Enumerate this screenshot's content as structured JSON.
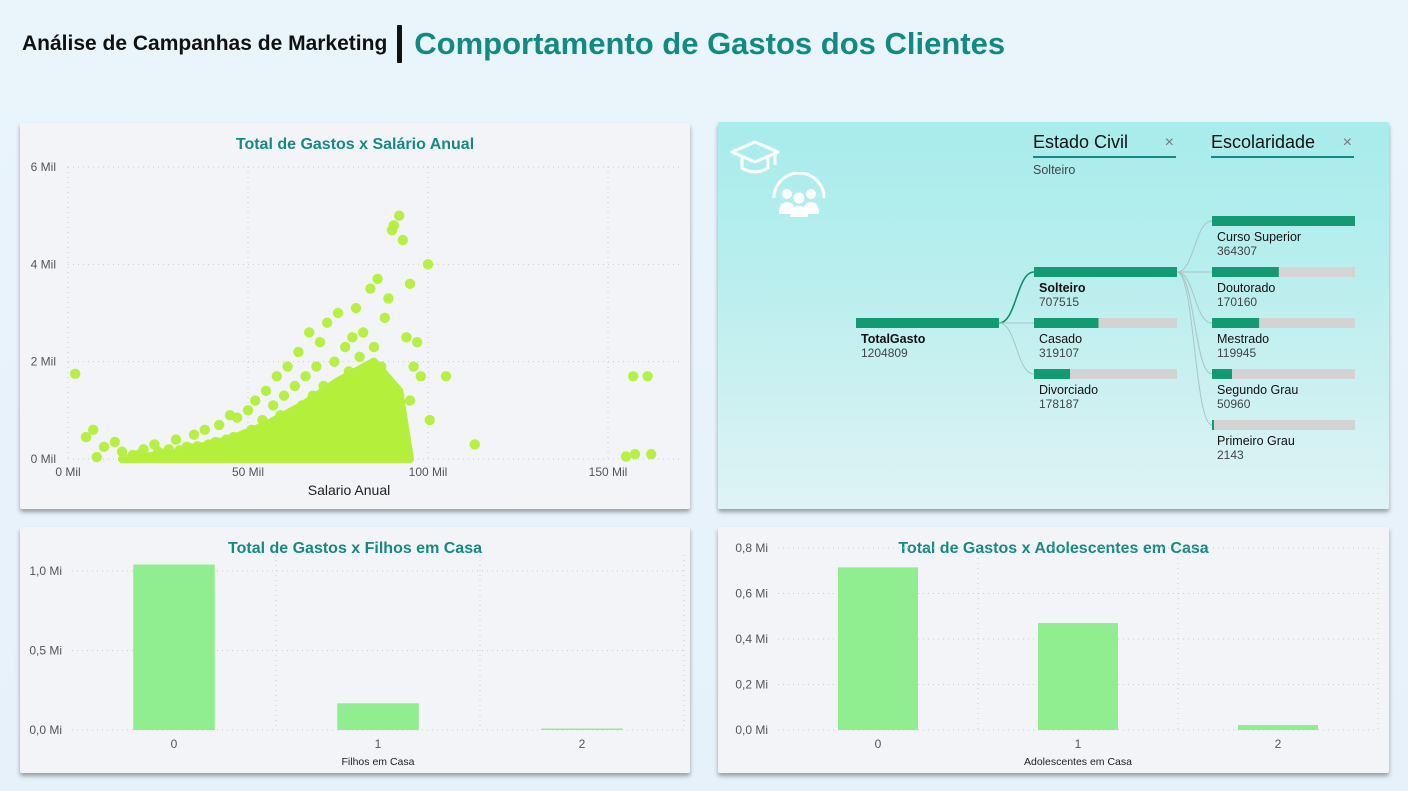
{
  "header": {
    "left_title": "Análise de Campanhas de Marketing",
    "right_title": "Comportamento de Gastos dos Clientes"
  },
  "colors": {
    "accent": "#168a80",
    "scatter": "#b3ef3b",
    "bar": "#90ee90",
    "tree_bar": "#139a73",
    "tree_track": "#d3d3d3"
  },
  "scatter_card": {
    "title": "Total de Gastos x Salário Anual",
    "xlabel": "Salario Anual",
    "x_ticks": [
      "0 Mil",
      "50 Mil",
      "100 Mil",
      "150 Mil"
    ],
    "y_ticks": [
      "0 Mil",
      "2 Mil",
      "4 Mil",
      "6 Mil"
    ]
  },
  "tree_card": {
    "icons": [
      "graduation-cap-icon",
      "family-group-icon"
    ],
    "slicer_estado": {
      "title": "Estado Civil",
      "value": "Solteiro",
      "clear": "×"
    },
    "slicer_escolaridade": {
      "title": "Escolaridade",
      "clear": "×"
    },
    "root": {
      "label": "TotalGasto",
      "value": "1204809"
    },
    "level1": [
      {
        "label": "Solteiro",
        "value": "707515",
        "selected": true
      },
      {
        "label": "Casado",
        "value": "319107"
      },
      {
        "label": "Divorciado",
        "value": "178187"
      }
    ],
    "level2": [
      {
        "label": "Curso Superior",
        "value": "364307"
      },
      {
        "label": "Doutorado",
        "value": "170160"
      },
      {
        "label": "Mestrado",
        "value": "119945"
      },
      {
        "label": "Segundo Grau",
        "value": "50960"
      },
      {
        "label": "Primeiro Grau",
        "value": "2143"
      }
    ]
  },
  "filhos_card": {
    "title": "Total de Gastos x Filhos em Casa",
    "xlabel": "Filhos em Casa",
    "y_ticks": [
      "0,0 Mi",
      "0,5 Mi",
      "1,0 Mi"
    ]
  },
  "adol_card": {
    "title": "Total de Gastos x Adolescentes em Casa",
    "xlabel": "Adolescentes em Casa",
    "y_ticks": [
      "0,0 Mi",
      "0,2 Mi",
      "0,4 Mi",
      "0,6 Mi",
      "0,8 Mi"
    ]
  },
  "chart_data": [
    {
      "type": "scatter",
      "title": "Total de Gastos x Salário Anual",
      "xlabel": "Salario Anual",
      "ylabel": "",
      "xlim": [
        0,
        170000
      ],
      "ylim": [
        0,
        6000
      ],
      "grid": true,
      "points": [
        [
          2000,
          1750
        ],
        [
          5000,
          450
        ],
        [
          7000,
          600
        ],
        [
          8000,
          40
        ],
        [
          10000,
          250
        ],
        [
          13000,
          350
        ],
        [
          15000,
          150
        ],
        [
          18000,
          80
        ],
        [
          21000,
          200
        ],
        [
          24000,
          300
        ],
        [
          27000,
          120
        ],
        [
          30000,
          400
        ],
        [
          33000,
          250
        ],
        [
          35000,
          500
        ],
        [
          38000,
          600
        ],
        [
          40000,
          300
        ],
        [
          42000,
          700
        ],
        [
          44000,
          400
        ],
        [
          45000,
          900
        ],
        [
          47000,
          850
        ],
        [
          48000,
          350
        ],
        [
          50000,
          1000
        ],
        [
          51000,
          600
        ],
        [
          52000,
          1200
        ],
        [
          54000,
          800
        ],
        [
          55000,
          1400
        ],
        [
          56000,
          500
        ],
        [
          57000,
          1100
        ],
        [
          58000,
          1700
        ],
        [
          59000,
          900
        ],
        [
          60000,
          1300
        ],
        [
          61000,
          1900
        ],
        [
          62000,
          700
        ],
        [
          63000,
          1500
        ],
        [
          64000,
          2200
        ],
        [
          65000,
          1100
        ],
        [
          66000,
          1700
        ],
        [
          67000,
          2600
        ],
        [
          68000,
          1300
        ],
        [
          69000,
          1900
        ],
        [
          70000,
          2400
        ],
        [
          71000,
          1500
        ],
        [
          72000,
          2800
        ],
        [
          73000,
          1200
        ],
        [
          74000,
          2000
        ],
        [
          75000,
          3000
        ],
        [
          76000,
          1600
        ],
        [
          77000,
          2300
        ],
        [
          78000,
          1800
        ],
        [
          79000,
          2500
        ],
        [
          80000,
          3100
        ],
        [
          81000,
          2100
        ],
        [
          82000,
          2600
        ],
        [
          83000,
          1700
        ],
        [
          84000,
          3500
        ],
        [
          85000,
          2300
        ],
        [
          86000,
          3700
        ],
        [
          87000,
          1900
        ],
        [
          88000,
          2900
        ],
        [
          89000,
          3300
        ],
        [
          90000,
          4700
        ],
        [
          90500,
          4800
        ],
        [
          92000,
          5000
        ],
        [
          93000,
          4500
        ],
        [
          94000,
          2500
        ],
        [
          95000,
          3600
        ],
        [
          96000,
          1900
        ],
        [
          97000,
          2400
        ],
        [
          98000,
          1700
        ],
        [
          100000,
          4000
        ],
        [
          100500,
          800
        ],
        [
          105000,
          1700
        ],
        [
          113000,
          300
        ],
        [
          157000,
          1700
        ],
        [
          161000,
          1700
        ],
        [
          155000,
          50
        ],
        [
          157500,
          100
        ],
        [
          162000,
          100
        ],
        [
          20000,
          100
        ],
        [
          25000,
          150
        ],
        [
          28000,
          200
        ],
        [
          31000,
          180
        ],
        [
          34000,
          220
        ],
        [
          36000,
          260
        ],
        [
          39000,
          300
        ],
        [
          41000,
          350
        ],
        [
          43000,
          200
        ],
        [
          46000,
          450
        ],
        [
          49000,
          500
        ],
        [
          53000,
          600
        ],
        [
          60000,
          800
        ],
        [
          65000,
          900
        ],
        [
          70000,
          1000
        ],
        [
          75000,
          1100
        ],
        [
          80000,
          1200
        ],
        [
          85000,
          1300
        ],
        [
          88000,
          1400
        ],
        [
          92000,
          1300
        ],
        [
          95000,
          1200
        ],
        [
          58000,
          400
        ],
        [
          62000,
          500
        ],
        [
          66000,
          600
        ],
        [
          72000,
          700
        ],
        [
          78000,
          800
        ],
        [
          82000,
          900
        ],
        [
          86000,
          1000
        ]
      ]
    },
    {
      "type": "bar",
      "title": "Total de Gastos x Filhos em Casa",
      "xlabel": "Filhos em Casa",
      "categories": [
        "0",
        "1",
        "2"
      ],
      "values": [
        1040000,
        168000,
        5000
      ],
      "ylim": [
        0,
        1100000
      ]
    },
    {
      "type": "bar",
      "title": "Total de Gastos x Adolescentes em Casa",
      "xlabel": "Adolescentes em Casa",
      "categories": [
        "0",
        "1",
        "2"
      ],
      "values": [
        715000,
        470000,
        22000
      ],
      "ylim": [
        0,
        800000
      ]
    }
  ]
}
